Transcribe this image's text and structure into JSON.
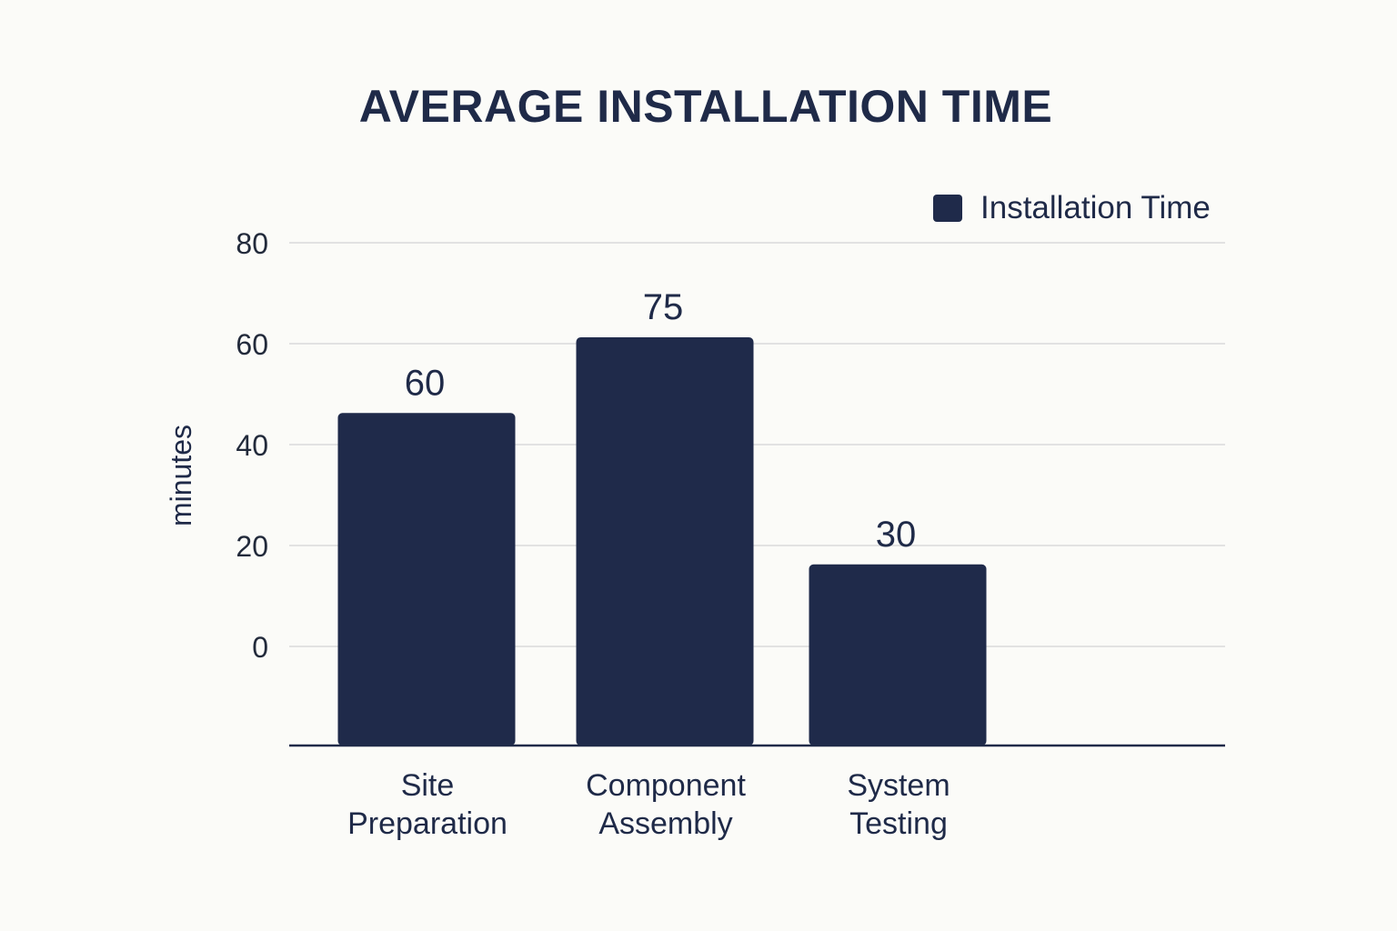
{
  "chart_data": {
    "type": "bar",
    "title": "AVERAGE INSTALLATION TIME",
    "ylabel": "minutes",
    "xlabel": "",
    "categories": [
      [
        "Site",
        "Preparation"
      ],
      [
        "Component",
        "Assembly"
      ],
      [
        "System",
        "Testing"
      ]
    ],
    "series": [
      {
        "name": "Installation Time",
        "values": [
          60,
          75,
          30
        ],
        "color": "#1f2a4a"
      }
    ],
    "ylim": [
      0,
      80
    ],
    "yticks": [
      "80",
      "60",
      "40",
      "20",
      "0"
    ],
    "grid": true,
    "legend_position": "top-right"
  }
}
